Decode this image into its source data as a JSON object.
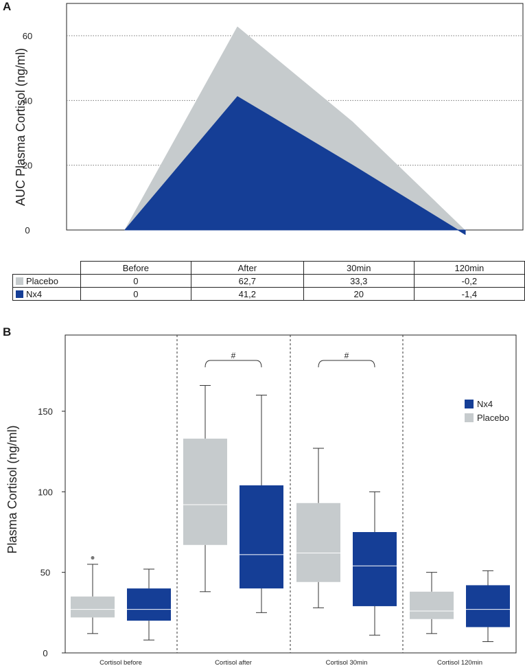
{
  "colors": {
    "placebo": "#c6cbcd",
    "nx4": "#153e96",
    "grid": "#777777"
  },
  "panel_a_label": "A",
  "panel_b_label": "B",
  "table": {
    "headers": [
      "Before",
      "After",
      "30min",
      "120min"
    ],
    "rows": [
      {
        "label": "Placebo",
        "values": [
          "0",
          "62,7",
          "33,3",
          "-0,2"
        ]
      },
      {
        "label": "Nx4",
        "values": [
          "0",
          "41,2",
          "20",
          "-1,4"
        ]
      }
    ]
  },
  "chart_data": [
    {
      "type": "area",
      "panel": "A",
      "ylabel": "AUC Plasma Cortisol (ng/ml)",
      "ylim": [
        0,
        70
      ],
      "yticks": [
        0,
        20,
        40,
        60
      ],
      "grid": "horizontal dotted",
      "x": [
        "Before",
        "After",
        "30min",
        "120min"
      ],
      "series": [
        {
          "name": "Placebo",
          "values": [
            0,
            62.7,
            33.3,
            -0.2
          ]
        },
        {
          "name": "Nx4",
          "values": [
            0,
            41.2,
            20,
            -1.4
          ]
        }
      ]
    },
    {
      "type": "box",
      "panel": "B",
      "ylabel": "Plasma Cortisol (ng/ml)",
      "ylim": [
        0,
        190
      ],
      "yticks": [
        0,
        50,
        100,
        150
      ],
      "categories": [
        "Cortisol before",
        "Cortisol after",
        "Cortisol 30min",
        "Cortisol 120min"
      ],
      "legend": {
        "position": "right",
        "entries": [
          "Nx4",
          "Placebo"
        ]
      },
      "series": [
        {
          "name": "Placebo",
          "boxes": [
            {
              "min": 12,
              "q1": 22,
              "median": 27,
              "q3": 35,
              "max": 55,
              "outliers": [
                59
              ]
            },
            {
              "min": 38,
              "q1": 67,
              "median": 92,
              "q3": 133,
              "max": 166,
              "outliers": []
            },
            {
              "min": 28,
              "q1": 44,
              "median": 62,
              "q3": 93,
              "max": 127,
              "outliers": []
            },
            {
              "min": 12,
              "q1": 21,
              "median": 26,
              "q3": 38,
              "max": 50,
              "outliers": []
            }
          ]
        },
        {
          "name": "Nx4",
          "boxes": [
            {
              "min": 8,
              "q1": 20,
              "median": 27,
              "q3": 40,
              "max": 52,
              "outliers": []
            },
            {
              "min": 25,
              "q1": 40,
              "median": 61,
              "q3": 104,
              "max": 160,
              "outliers": []
            },
            {
              "min": 11,
              "q1": 29,
              "median": 54,
              "q3": 75,
              "max": 100,
              "outliers": []
            },
            {
              "min": 7,
              "q1": 16,
              "median": 27,
              "q3": 42,
              "max": 51,
              "outliers": []
            }
          ]
        }
      ],
      "annotations": [
        {
          "text": "#",
          "category_index": 1
        },
        {
          "text": "#",
          "category_index": 2
        }
      ]
    }
  ]
}
